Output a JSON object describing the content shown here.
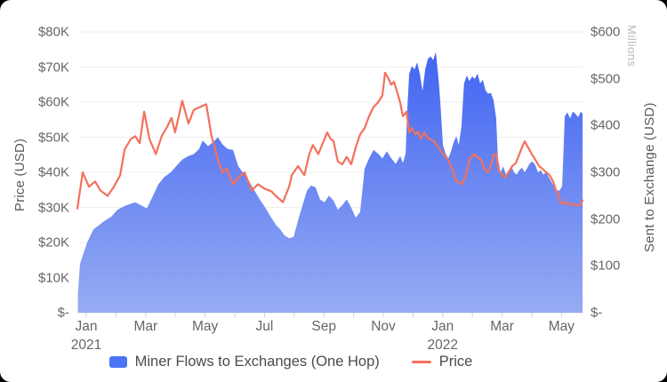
{
  "colors": {
    "area_gradient_top": "#3a5ff2",
    "area_gradient_bottom": "#96abf2",
    "price_line": "#f4705c",
    "legend_area_swatch": "#4b74f4",
    "grid_line": "#efefef",
    "axis_line": "#e4e4e4",
    "tick_text": "#666666",
    "axis_title_text": "#595959",
    "unit_text": "#b9b9b9",
    "card_background": "#ffffff"
  },
  "chart_data": {
    "type": "area+line",
    "x_axis": {
      "note": "m = months since Jan 1 2021; labeled every 2 months, minor tick every month",
      "minor_ticks_months": [
        0,
        1,
        2,
        3,
        4,
        5,
        6,
        7,
        8,
        9,
        10,
        11,
        12,
        13,
        14,
        15,
        16
      ],
      "ticks": [
        {
          "label": "Jan",
          "sub": "2021",
          "m": 0
        },
        {
          "label": "Mar",
          "sub": "",
          "m": 2
        },
        {
          "label": "May",
          "sub": "",
          "m": 4
        },
        {
          "label": "Jul",
          "sub": "",
          "m": 6
        },
        {
          "label": "Sep",
          "sub": "",
          "m": 8
        },
        {
          "label": "Nov",
          "sub": "",
          "m": 10
        },
        {
          "label": "Jan",
          "sub": "2022",
          "m": 12
        },
        {
          "label": "Mar",
          "sub": "",
          "m": 14
        },
        {
          "label": "May",
          "sub": "",
          "m": 16
        }
      ]
    },
    "left_axis": {
      "title": "Price (USD)",
      "min": 0,
      "max": 80000,
      "step": 10000,
      "ticks": [
        "$-",
        "$10K",
        "$20K",
        "$30K",
        "$40K",
        "$50K",
        "$60K",
        "$70K",
        "$80K"
      ]
    },
    "right_axis": {
      "title": "Sent to Exchange (USD)",
      "unit_label": "Millions",
      "min": 0,
      "max": 600,
      "step": 100,
      "ticks": [
        "$-",
        "$100",
        "$200",
        "$300",
        "$400",
        "$500",
        "$600"
      ]
    },
    "legend": [
      {
        "label": "Miner Flows to Exchanges (One Hop)",
        "swatch": "area"
      },
      {
        "label": "Price",
        "swatch": "line"
      }
    ],
    "series": [
      {
        "name": "Miner Flows to Exchanges (One Hop)",
        "type": "area",
        "axis": "right",
        "unit": "million USD",
        "m": [
          -0.28,
          -0.21,
          0.03,
          0.24,
          0.45,
          0.63,
          0.84,
          1.05,
          1.29,
          1.47,
          1.65,
          1.83,
          2.04,
          2.19,
          2.43,
          2.63,
          2.84,
          3.05,
          3.23,
          3.44,
          3.62,
          3.8,
          3.92,
          4.1,
          4.28,
          4.43,
          4.58,
          4.76,
          4.94,
          5.12,
          5.27,
          5.42,
          5.6,
          5.84,
          6.02,
          6.23,
          6.38,
          6.53,
          6.68,
          6.83,
          6.98,
          7.13,
          7.28,
          7.43,
          7.57,
          7.72,
          7.87,
          8.02,
          8.17,
          8.32,
          8.47,
          8.62,
          8.77,
          8.92,
          9.07,
          9.22,
          9.37,
          9.52,
          9.67,
          9.82,
          9.97,
          10.12,
          10.27,
          10.42,
          10.57,
          10.66,
          10.75,
          10.81,
          10.87,
          10.96,
          11.05,
          11.14,
          11.23,
          11.32,
          11.41,
          11.5,
          11.59,
          11.68,
          11.77,
          11.86,
          11.92,
          12.01,
          12.1,
          12.19,
          12.28,
          12.37,
          12.46,
          12.54,
          12.63,
          12.72,
          12.81,
          12.9,
          12.99,
          13.08,
          13.17,
          13.26,
          13.35,
          13.44,
          13.53,
          13.62,
          13.71,
          13.8,
          13.86,
          13.95,
          14.04,
          14.13,
          14.22,
          14.31,
          14.4,
          14.49,
          14.58,
          14.67,
          14.76,
          14.85,
          14.94,
          15.03,
          15.12,
          15.21,
          15.3,
          15.39,
          15.48,
          15.57,
          15.66,
          15.75,
          15.84,
          15.93,
          16.02,
          16.11,
          16.2,
          16.29,
          16.38,
          16.47,
          16.56,
          16.65,
          16.71
        ],
        "values": [
          40,
          105,
          150,
          178,
          188,
          197,
          205,
          220,
          228,
          232,
          236,
          230,
          223,
          242,
          275,
          290,
          300,
          315,
          327,
          335,
          339,
          350,
          368,
          356,
          365,
          375,
          360,
          350,
          348,
          313,
          300,
          288,
          268,
          242,
          225,
          203,
          188,
          178,
          165,
          159,
          162,
          197,
          230,
          261,
          272,
          268,
          242,
          236,
          250,
          240,
          220,
          230,
          242,
          225,
          203,
          215,
          308,
          330,
          348,
          340,
          330,
          345,
          330,
          318,
          335,
          320,
          340,
          440,
          510,
          527,
          520,
          535,
          510,
          474,
          520,
          542,
          548,
          540,
          557,
          500,
          450,
          358,
          340,
          330,
          345,
          365,
          377,
          358,
          397,
          490,
          507,
          495,
          505,
          500,
          511,
          490,
          498,
          475,
          468,
          470,
          455,
          416,
          330,
          300,
          313,
          295,
          305,
          313,
          300,
          295,
          305,
          310,
          300,
          310,
          320,
          323,
          315,
          300,
          305,
          295,
          300,
          290,
          280,
          270,
          262,
          261,
          270,
          420,
          428,
          415,
          430,
          425,
          418,
          430,
          425
        ]
      },
      {
        "name": "Price",
        "type": "line",
        "axis": "left",
        "unit": "thousand USD",
        "m": [
          -0.3,
          -0.12,
          0.09,
          0.3,
          0.48,
          0.72,
          0.93,
          1.14,
          1.29,
          1.5,
          1.65,
          1.8,
          1.95,
          2.13,
          2.34,
          2.54,
          2.72,
          2.87,
          2.99,
          3.23,
          3.44,
          3.62,
          3.83,
          4.04,
          4.22,
          4.43,
          4.58,
          4.73,
          4.94,
          5.12,
          5.33,
          5.57,
          5.78,
          5.99,
          6.23,
          6.38,
          6.62,
          6.83,
          6.92,
          7.13,
          7.34,
          7.51,
          7.63,
          7.81,
          8.02,
          8.11,
          8.23,
          8.32,
          8.47,
          8.62,
          8.77,
          8.92,
          9.07,
          9.22,
          9.37,
          9.52,
          9.67,
          9.82,
          9.97,
          10.06,
          10.15,
          10.27,
          10.36,
          10.48,
          10.57,
          10.66,
          10.78,
          10.87,
          10.96,
          11.08,
          11.17,
          11.26,
          11.38,
          11.47,
          11.56,
          11.71,
          11.86,
          11.98,
          12.1,
          12.22,
          12.34,
          12.46,
          12.57,
          12.66,
          12.78,
          12.9,
          13.05,
          13.17,
          13.29,
          13.41,
          13.5,
          13.59,
          13.71,
          13.8,
          13.89,
          14.01,
          14.1,
          14.22,
          14.34,
          14.46,
          14.58,
          14.7,
          14.76,
          14.88,
          15.0,
          15.12,
          15.24,
          15.36,
          15.48,
          15.6,
          15.72,
          15.81,
          15.9,
          15.96,
          16.05,
          16.17,
          16.29,
          16.41,
          16.53,
          16.62,
          16.71
        ],
        "values": [
          29.7,
          40.0,
          35.9,
          37.4,
          34.8,
          33.3,
          35.9,
          39.2,
          46.5,
          49.5,
          50.3,
          48.3,
          57.3,
          49.5,
          45.2,
          50.3,
          52.9,
          55.5,
          51.4,
          60.4,
          53.9,
          57.8,
          58.6,
          59.4,
          50.3,
          43.6,
          40.0,
          41.0,
          36.6,
          38.5,
          40.0,
          34.8,
          36.6,
          35.4,
          34.6,
          33.3,
          31.5,
          35.9,
          39.2,
          41.8,
          39.2,
          45.2,
          47.8,
          45.2,
          49.5,
          51.4,
          49.5,
          49.0,
          43.1,
          42.3,
          44.4,
          42.3,
          47.0,
          50.8,
          52.6,
          56.0,
          58.6,
          59.9,
          61.9,
          68.4,
          67.1,
          65.0,
          65.8,
          62.5,
          59.9,
          56.0,
          57.3,
          51.4,
          52.6,
          50.8,
          51.6,
          49.5,
          51.4,
          50.1,
          49.5,
          48.8,
          47.0,
          45.7,
          44.4,
          43.1,
          40.5,
          37.4,
          37.2,
          36.6,
          39.2,
          43.6,
          45.2,
          44.4,
          43.6,
          41.0,
          40.0,
          41.0,
          44.9,
          45.2,
          40.5,
          39.2,
          38.5,
          40.0,
          41.8,
          42.6,
          45.2,
          47.8,
          48.8,
          47.0,
          45.2,
          43.6,
          41.8,
          41.0,
          40.0,
          39.2,
          37.4,
          34.8,
          33.6,
          31.5,
          31.0,
          31.5,
          30.7,
          31.0,
          30.5,
          30.7,
          32.0
        ]
      }
    ]
  }
}
